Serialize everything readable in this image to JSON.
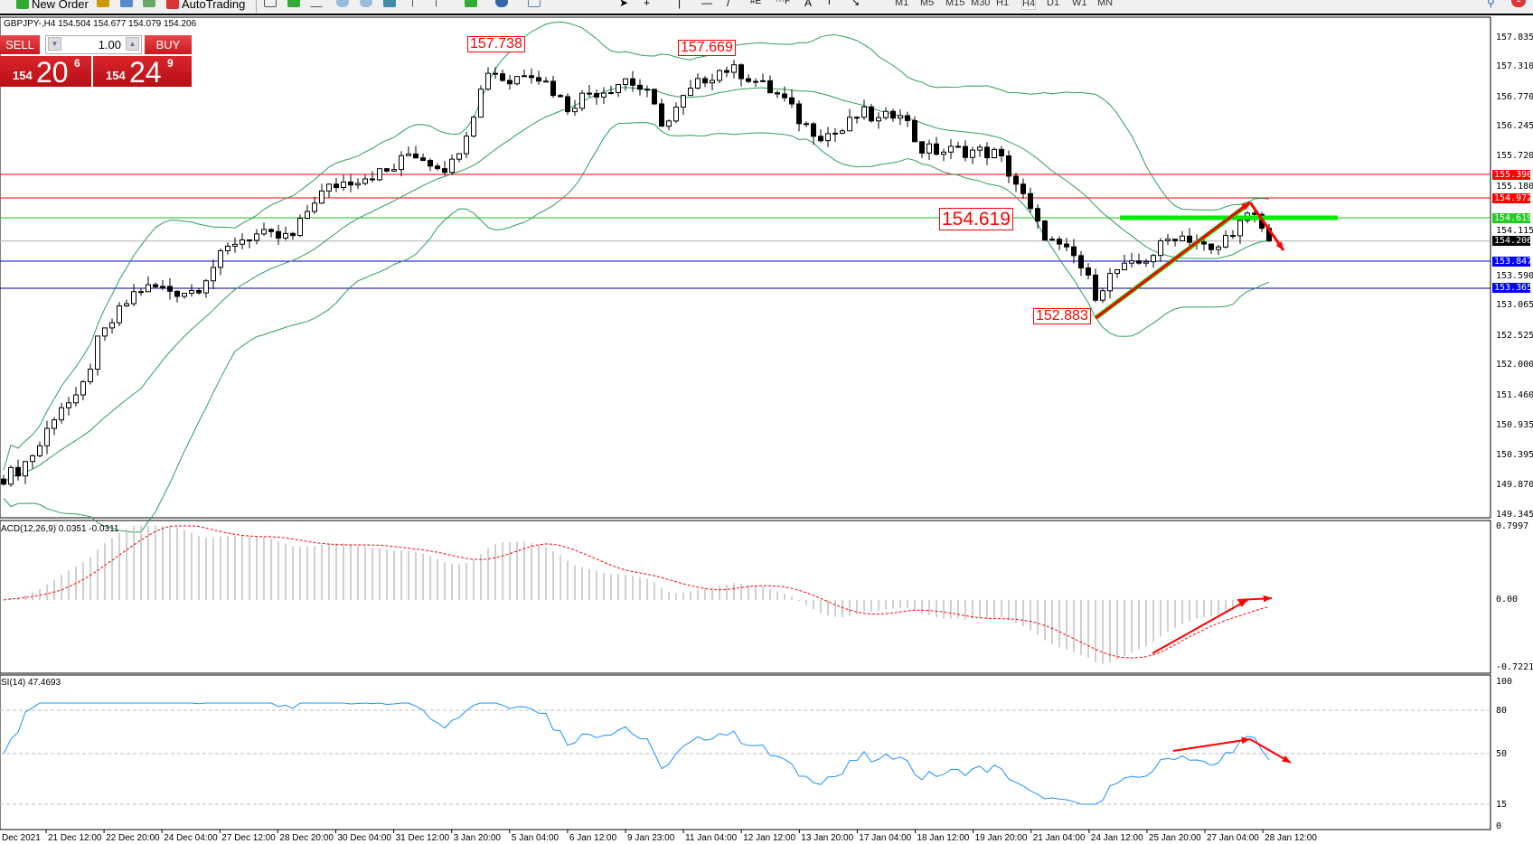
{
  "toolbar": {
    "new_order": "New Order",
    "autotrading": "AutoTrading",
    "timeframes": [
      "M1",
      "M5",
      "M15",
      "M30",
      "H1",
      "H4",
      "D1",
      "W1",
      "MN"
    ],
    "active_timeframe": "H4",
    "notifications": "1"
  },
  "chart": {
    "header": "GBPJPY-,H4  154.504 154.677 154.079 154.206",
    "trade_panel": {
      "sell_label": "SELL",
      "buy_label": "BUY",
      "volume": "1.00",
      "sell_price": {
        "small": "154",
        "big": "20",
        "pip": "6"
      },
      "buy_price": {
        "small": "154",
        "big": "24",
        "pip": "9"
      }
    },
    "price_axis": [
      "157.835",
      "157.310",
      "156.770",
      "156.245",
      "155.720",
      "155.180",
      "154.115",
      "153.590",
      "153.065",
      "152.525",
      "152.000",
      "151.460",
      "150.935",
      "150.395",
      "149.870",
      "149.345"
    ],
    "price_tags": [
      {
        "value": "155.390",
        "color": "#ff0000"
      },
      {
        "value": "154.972",
        "color": "#ff0000"
      },
      {
        "value": "154.619",
        "color": "#22cc22"
      },
      {
        "value": "154.206",
        "color": "#000000"
      },
      {
        "value": "153.847",
        "color": "#0000ff"
      },
      {
        "value": "153.365",
        "color": "#0000ff"
      }
    ],
    "annotations": [
      "157.738",
      "157.669",
      "154.619",
      "152.883"
    ],
    "macd_label": "ACD(12,26,9) 0.0351 -0.0311",
    "macd_axis": [
      "0.7997",
      "0.00",
      "-0.7221"
    ],
    "rsi_label": "SI(14) 47.4693",
    "rsi_axis": [
      "100",
      "80",
      "50",
      "15",
      "0"
    ],
    "time_axis": [
      "Dec 2021",
      "21 Dec 12:00",
      "22 Dec 20:00",
      "24 Dec 04:00",
      "27 Dec 12:00",
      "28 Dec 20:00",
      "30 Dec 04:00",
      "31 Dec 12:00",
      "3 Jan 20:00",
      "5 Jan 04:00",
      "6 Jan 12:00",
      "9 Jan 23:00",
      "11 Jan 04:00",
      "12 Jan 12:00",
      "13 Jan 20:00",
      "17 Jan 04:00",
      "18 Jan 12:00",
      "19 Jan 20:00",
      "21 Jan 04:00",
      "24 Jan 12:00",
      "25 Jan 20:00",
      "27 Jan 04:00",
      "28 Jan 12:00"
    ]
  },
  "chart_data": {
    "type": "candlestick",
    "symbol": "GBPJPY",
    "timeframe": "H4",
    "ylim": [
      149.345,
      157.835
    ],
    "close_path": [
      149.97,
      150.15,
      150.55,
      151.27,
      151.36,
      152.4,
      152.9,
      153.34,
      153.38,
      153.31,
      153.33,
      153.8,
      154.2,
      154.32,
      154.26,
      154.28,
      154.93,
      155.19,
      155.3,
      155.39,
      155.45,
      155.8,
      155.62,
      155.5,
      156.3,
      157.3,
      157.02,
      157.28,
      157.0,
      156.58,
      156.84,
      156.9,
      157.1,
      156.85,
      156.23,
      156.76,
      157.1,
      157.28,
      157.19,
      156.96,
      156.75,
      156.3,
      156.1,
      156.15,
      156.5,
      156.32,
      156.58,
      155.85,
      155.8,
      155.82,
      155.8,
      155.75,
      155.2,
      154.49,
      154.1,
      153.9,
      153.27,
      153.68,
      153.75,
      154.0,
      154.32,
      154.25,
      153.97,
      154.41,
      154.67,
      154.206
    ],
    "horizontal_levels": [
      155.39,
      154.972,
      154.619,
      154.206,
      153.847,
      153.365
    ],
    "marked_high": 157.738,
    "marked_high_2": 157.669,
    "marked_low": 152.883,
    "macd": {
      "fast": 12,
      "slow": 26,
      "signal": 9,
      "main": 0.0351,
      "signal_value": -0.0311,
      "ylim": [
        -0.7221,
        0.7997
      ]
    },
    "rsi": {
      "period": 14,
      "value": 47.4693,
      "levels": [
        80,
        50,
        15
      ],
      "ylim": [
        0,
        100
      ]
    },
    "colors": {
      "bands": "#2e9e5b",
      "rsi": "#1e90ff",
      "macd_hist": "#c0c0c0",
      "macd_signal": "#ff0000",
      "arrows": "#ff0000",
      "support": "#00ee00"
    }
  }
}
